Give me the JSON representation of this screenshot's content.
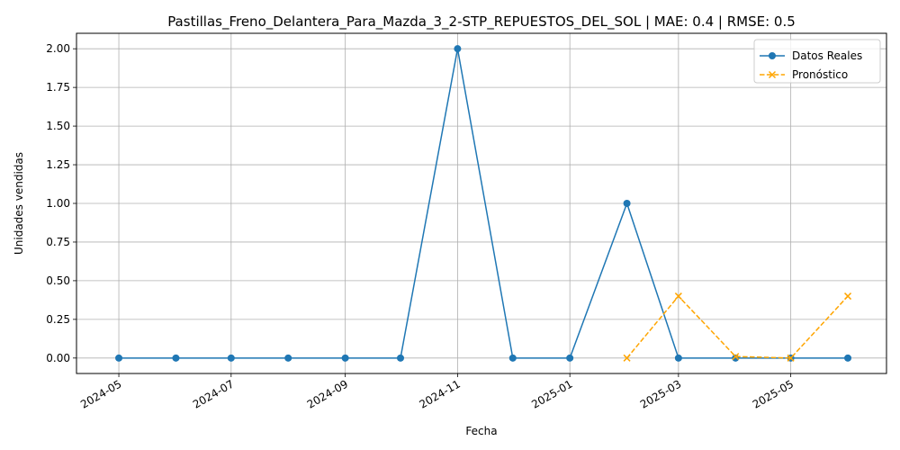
{
  "chart_data": {
    "type": "line",
    "title": "Pastillas_Freno_Delantera_Para_Mazda_3_2-STP_REPUESTOS_DEL_SOL | MAE: 0.4 | RMSE: 0.5",
    "xlabel": "Fecha",
    "ylabel": "Unidades vendidas",
    "xlim": [
      "2024-04-08",
      "2025-06-22"
    ],
    "ylim": [
      -0.1,
      2.1
    ],
    "x_ticks": [
      "2024-05",
      "2024-07",
      "2024-09",
      "2024-11",
      "2025-01",
      "2025-03",
      "2025-05"
    ],
    "y_ticks": [
      "0.00",
      "0.25",
      "0.50",
      "0.75",
      "1.00",
      "1.25",
      "1.50",
      "1.75",
      "2.00"
    ],
    "grid": true,
    "legend_position": "upper-right",
    "series": [
      {
        "name": "Datos Reales",
        "color": "#1f77b4",
        "marker": "circle",
        "line": "solid",
        "points": [
          [
            "2024-05-01",
            0
          ],
          [
            "2024-06-01",
            0
          ],
          [
            "2024-07-01",
            0
          ],
          [
            "2024-08-01",
            0
          ],
          [
            "2024-09-01",
            0
          ],
          [
            "2024-10-01",
            0
          ],
          [
            "2024-11-01",
            2
          ],
          [
            "2024-12-01",
            0
          ],
          [
            "2025-01-01",
            0
          ],
          [
            "2025-02-01",
            1
          ],
          [
            "2025-03-01",
            0
          ],
          [
            "2025-04-01",
            0
          ],
          [
            "2025-05-01",
            0
          ],
          [
            "2025-06-01",
            0
          ]
        ]
      },
      {
        "name": "Pronóstico",
        "color": "#ffa500",
        "marker": "x",
        "line": "dashed",
        "points": [
          [
            "2025-02-01",
            0
          ],
          [
            "2025-03-01",
            0.4
          ],
          [
            "2025-04-01",
            0.01
          ],
          [
            "2025-05-01",
            0
          ],
          [
            "2025-06-01",
            0.4
          ]
        ]
      }
    ]
  }
}
